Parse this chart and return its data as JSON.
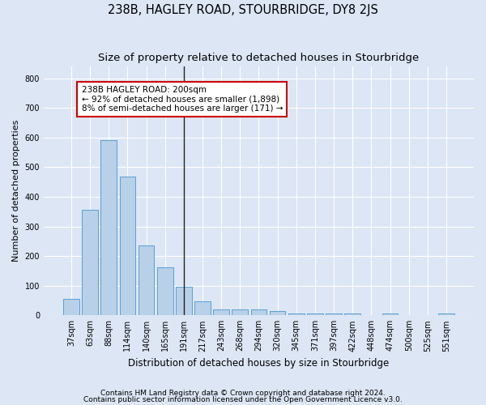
{
  "title": "238B, HAGLEY ROAD, STOURBRIDGE, DY8 2JS",
  "subtitle": "Size of property relative to detached houses in Stourbridge",
  "xlabel": "Distribution of detached houses by size in Stourbridge",
  "ylabel": "Number of detached properties",
  "footnote1": "Contains HM Land Registry data © Crown copyright and database right 2024.",
  "footnote2": "Contains public sector information licensed under the Open Government Licence v3.0.",
  "bar_labels": [
    "37sqm",
    "63sqm",
    "88sqm",
    "114sqm",
    "140sqm",
    "165sqm",
    "191sqm",
    "217sqm",
    "243sqm",
    "268sqm",
    "294sqm",
    "320sqm",
    "345sqm",
    "371sqm",
    "397sqm",
    "422sqm",
    "448sqm",
    "474sqm",
    "500sqm",
    "525sqm",
    "551sqm"
  ],
  "bar_values": [
    55,
    355,
    590,
    468,
    237,
    163,
    97,
    46,
    20,
    19,
    19,
    14,
    5,
    5,
    5,
    5,
    1,
    5,
    1,
    1,
    5
  ],
  "highlight_bar_index": 6,
  "bar_color": "#b8d0e8",
  "bar_edge_color": "#5a9fd4",
  "highlight_line_color": "#222222",
  "annotation_text": "238B HAGLEY ROAD: 200sqm\n← 92% of detached houses are smaller (1,898)\n8% of semi-detached houses are larger (171) →",
  "annotation_box_facecolor": "#ffffff",
  "annotation_box_edgecolor": "#cc0000",
  "ylim": [
    0,
    840
  ],
  "yticks": [
    0,
    100,
    200,
    300,
    400,
    500,
    600,
    700,
    800
  ],
  "bg_color": "#dce6f5",
  "title_fontsize": 10.5,
  "subtitle_fontsize": 9.5,
  "xlabel_fontsize": 8.5,
  "ylabel_fontsize": 8,
  "tick_fontsize": 7,
  "annot_fontsize": 7.5,
  "footnote_fontsize": 6.5
}
